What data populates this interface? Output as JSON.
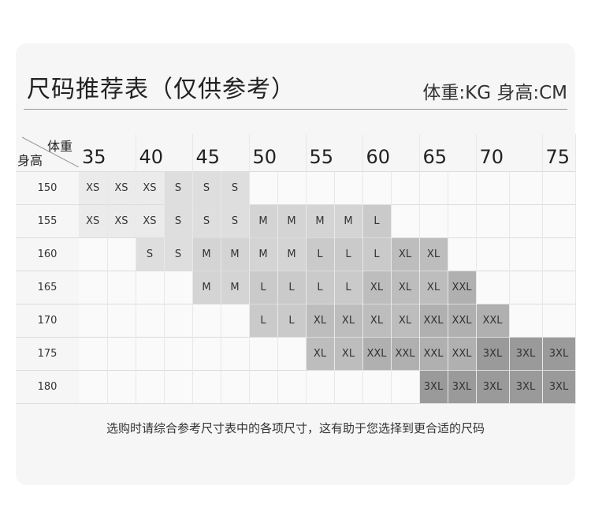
{
  "title": "尺码推荐表（仅供参考）",
  "units": "体重:KG 身高:CM",
  "corner": {
    "weight": "体重",
    "height": "身高"
  },
  "weight_headers": [
    "35",
    "40",
    "45",
    "50",
    "55",
    "60",
    "65",
    "70",
    "75"
  ],
  "size_colors": {
    "XS": "#ebebeb",
    "S": "#dedede",
    "M": "#d4d4d4",
    "L": "#cacaca",
    "XL": "#bdbdbd",
    "XXL": "#b0b0b0",
    "3XL": "#9a9a9a"
  },
  "rows": [
    {
      "height": "150",
      "cells": [
        "XS",
        "XS",
        "XS",
        "S",
        "S",
        "S",
        "",
        "",
        "",
        "",
        "",
        "",
        "",
        "",
        "",
        "",
        ""
      ]
    },
    {
      "height": "155",
      "cells": [
        "XS",
        "XS",
        "XS",
        "S",
        "S",
        "S",
        "M",
        "M",
        "M",
        "M",
        "L",
        "",
        "",
        "",
        "",
        "",
        ""
      ]
    },
    {
      "height": "160",
      "cells": [
        "",
        "",
        "S",
        "S",
        "M",
        "M",
        "M",
        "M",
        "L",
        "L",
        "L",
        "XL",
        "XL",
        "",
        "",
        "",
        ""
      ]
    },
    {
      "height": "165",
      "cells": [
        "",
        "",
        "",
        "",
        "M",
        "M",
        "L",
        "L",
        "L",
        "L",
        "XL",
        "XL",
        "XL",
        "XXL",
        "",
        "",
        ""
      ]
    },
    {
      "height": "170",
      "cells": [
        "",
        "",
        "",
        "",
        "",
        "",
        "L",
        "L",
        "XL",
        "XL",
        "XL",
        "XL",
        "XXL",
        "XXL",
        "XXL",
        "",
        ""
      ]
    },
    {
      "height": "175",
      "cells": [
        "",
        "",
        "",
        "",
        "",
        "",
        "",
        "",
        "XL",
        "XL",
        "XXL",
        "XXL",
        "XXL",
        "XXL",
        "3XL",
        "3XL",
        "3XL"
      ]
    },
    {
      "height": "180",
      "cells": [
        "",
        "",
        "",
        "",
        "",
        "",
        "",
        "",
        "",
        "",
        "",
        "",
        "3XL",
        "3XL",
        "3XL",
        "3XL",
        "3XL"
      ]
    }
  ],
  "note": "选购时请综合参考尺寸表中的各项尺寸，这有助于您选择到更合适的尺码"
}
